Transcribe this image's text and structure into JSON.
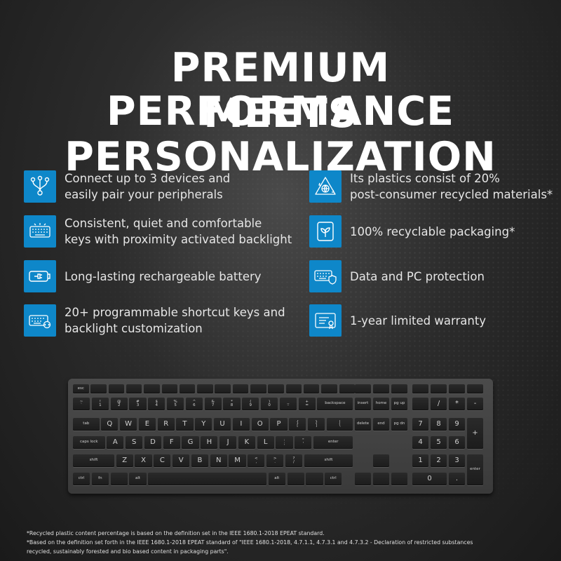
{
  "headline": {
    "line1": "PREMIUM PERFORMANCE",
    "line2": "MEETS PERSONALIZATION"
  },
  "features": [
    {
      "icon": "multi-device-icon",
      "text": "Connect up to 3 devices and\neasily pair your peripherals"
    },
    {
      "icon": "recycle-globe-icon",
      "text": "Its plastics consist of 20%\npost-consumer recycled materials*"
    },
    {
      "icon": "backlit-keyboard-icon",
      "text": "Consistent, quiet and comfortable\nkeys with proximity activated backlight"
    },
    {
      "icon": "leaf-packaging-icon",
      "text": "100% recyclable packaging*"
    },
    {
      "icon": "battery-icon",
      "text": "Long-lasting rechargeable battery"
    },
    {
      "icon": "keyboard-shield-icon",
      "text": "Data and PC protection"
    },
    {
      "icon": "programmable-keys-icon",
      "text": "20+ programmable shortcut keys and\nbacklight customization"
    },
    {
      "icon": "warranty-certificate-icon",
      "text": "1-year limited warranty"
    }
  ],
  "keyboard_labels": {
    "row0": [
      "esc",
      "",
      "",
      "",
      "",
      "",
      "",
      "",
      "",
      "",
      "",
      "",
      "",
      "",
      "",
      "",
      "",
      "",
      "",
      "",
      "",
      ""
    ],
    "row1": [
      "~\n`",
      "!\n1",
      "@\n2",
      "#\n3",
      "$\n4",
      "%\n5",
      "^\n6",
      "&\n7",
      "*\n8",
      "(\n9",
      ")\n0",
      "_\n–",
      "+\n=",
      "backspace",
      "insert",
      "home",
      "pg up",
      "",
      "/",
      "*",
      "-"
    ],
    "row2": [
      "tab",
      "Q",
      "W",
      "E",
      "R",
      "T",
      "Y",
      "U",
      "I",
      "O",
      "P",
      "{\n[",
      "}\n]",
      "|\n\\",
      "delete",
      "end",
      "pg dn",
      "7",
      "8",
      "9",
      "+"
    ],
    "row3": [
      "caps lock",
      "A",
      "S",
      "D",
      "F",
      "G",
      "H",
      "J",
      "K",
      "L",
      ":\n;",
      "\"\n'",
      "enter",
      "4",
      "5",
      "6"
    ],
    "row4": [
      "shift",
      "Z",
      "X",
      "C",
      "V",
      "B",
      "N",
      "M",
      "<\n,",
      ">\n.",
      "?\n/",
      "shift",
      "",
      "1",
      "2",
      "3",
      "enter"
    ],
    "row5": [
      "ctrl",
      "fn",
      "",
      "alt",
      "",
      "alt",
      "",
      "",
      "ctrl",
      "",
      "",
      "",
      "0",
      "."
    ]
  },
  "footnotes": {
    "note1": "*Recycled plastic content percentage is based on the definition set in the IEEE 1680.1-2018 EPEAT standard.",
    "note2": "*Based on the definition set forth in the IEEE 1680.1-2018 EPEAT standard of \"IEEE 1680.1-2018, 4.7.1.1, 4.7.3.1 and 4.7.3.2 - Declaration of restricted substances",
    "note3": " recycled, sustainably forested and bio based content in packaging parts\"."
  },
  "colors": {
    "accent": "#0e87c9",
    "background": "#2c2c2c",
    "text": "#ffffff"
  }
}
